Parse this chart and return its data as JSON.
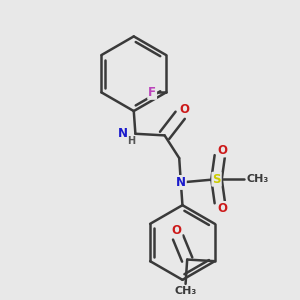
{
  "background_color": "#e8e8e8",
  "atom_colors": {
    "C": "#3a3a3a",
    "N": "#1a1acc",
    "O": "#cc1a1a",
    "F": "#bb44bb",
    "S": "#cccc00",
    "H": "#555555"
  },
  "bond_color": "#3a3a3a",
  "bond_width": 1.8,
  "figsize": [
    3.0,
    3.0
  ],
  "dpi": 100,
  "bg": "#e8e8e8"
}
